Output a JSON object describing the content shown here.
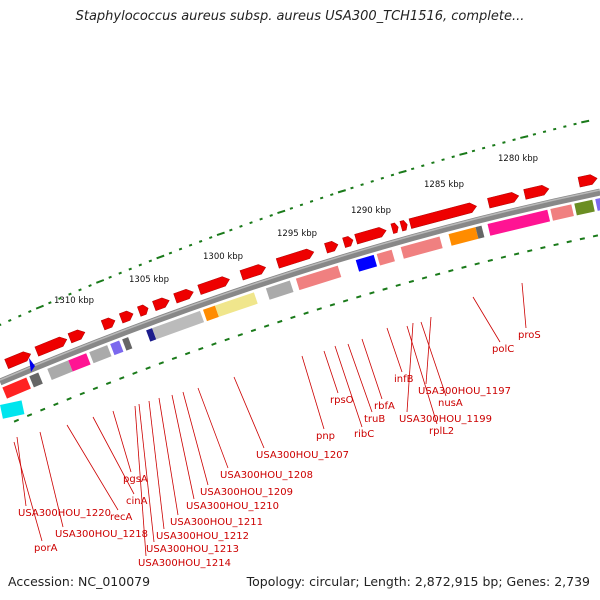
{
  "title": "Staphylococcus aureus subsp. aureus USA300_TCH1516, complete...",
  "footer": {
    "accession": "Accession: NC_010079",
    "summary": "Topology: circular; Length: 2,872,915 bp; Genes: 2,739"
  },
  "scale_labels": [
    "1280 kbp",
    "1285 kbp",
    "1290 kbp",
    "1295 kbp",
    "1300 kbp",
    "1305 kbp",
    "1310 kbp"
  ],
  "colors": {
    "gene_arrow": "#ee0000",
    "backbone": "#888888",
    "label": "#cc0000",
    "tick": "#1a7a1a"
  },
  "gene_labels": [
    {
      "id": "proS",
      "text": "proS"
    },
    {
      "id": "polC",
      "text": "polC"
    },
    {
      "id": "USA300HOU_1197",
      "text": "USA300HOU_1197"
    },
    {
      "id": "nusA",
      "text": "nusA"
    },
    {
      "id": "USA300HOU_1199",
      "text": "USA300HOU_1199"
    },
    {
      "id": "rplL2",
      "text": "rplL2"
    },
    {
      "id": "infB",
      "text": "infB"
    },
    {
      "id": "rbfA",
      "text": "rbfA"
    },
    {
      "id": "truB",
      "text": "truB"
    },
    {
      "id": "ribC",
      "text": "ribC"
    },
    {
      "id": "rpsO",
      "text": "rpsO"
    },
    {
      "id": "pnp",
      "text": "pnp"
    },
    {
      "id": "USA300HOU_1207",
      "text": "USA300HOU_1207"
    },
    {
      "id": "USA300HOU_1208",
      "text": "USA300HOU_1208"
    },
    {
      "id": "USA300HOU_1209",
      "text": "USA300HOU_1209"
    },
    {
      "id": "USA300HOU_1210",
      "text": "USA300HOU_1210"
    },
    {
      "id": "USA300HOU_1211",
      "text": "USA300HOU_1211"
    },
    {
      "id": "USA300HOU_1212",
      "text": "USA300HOU_1212"
    },
    {
      "id": "USA300HOU_1213",
      "text": "USA300HOU_1213"
    },
    {
      "id": "USA300HOU_1214",
      "text": "USA300HOU_1214"
    },
    {
      "id": "pgsA",
      "text": "pgsA"
    },
    {
      "id": "cinA",
      "text": "cinA"
    },
    {
      "id": "recA",
      "text": "recA"
    },
    {
      "id": "USA300HOU_1218",
      "text": "USA300HOU_1218"
    },
    {
      "id": "USA300HOU_1220",
      "text": "USA300HOU_1220"
    },
    {
      "id": "porA",
      "text": "porA"
    }
  ]
}
